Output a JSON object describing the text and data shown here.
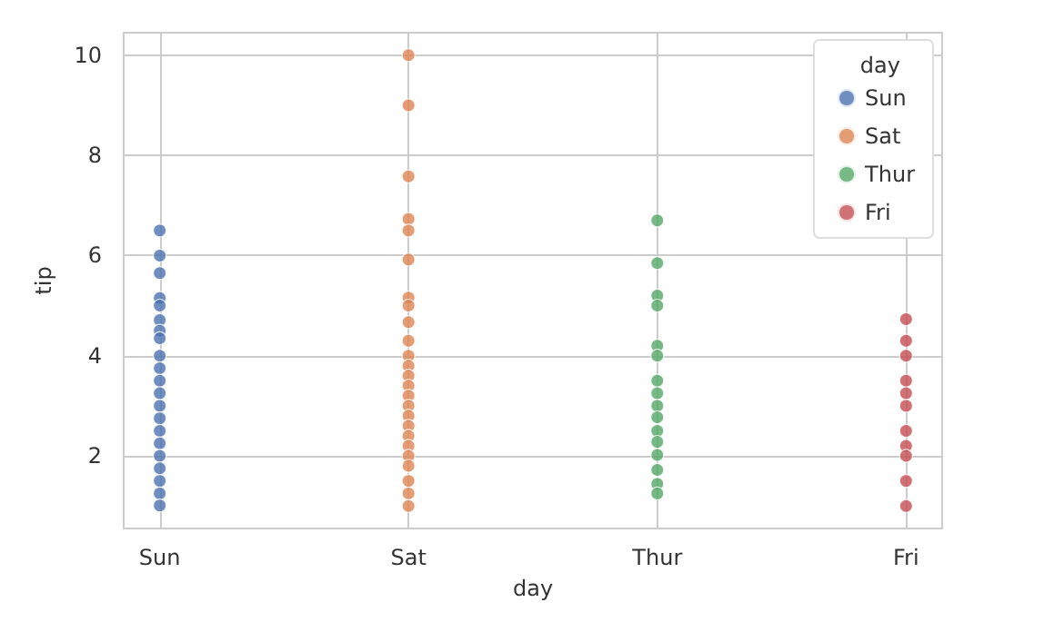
{
  "chart_data": {
    "type": "scatter",
    "xlabel": "day",
    "ylabel": "tip",
    "legend_title": "day",
    "categories": [
      "Sun",
      "Sat",
      "Thur",
      "Fri"
    ],
    "ylim": [
      0.55,
      10.45
    ],
    "yticks": [
      2,
      4,
      6,
      8,
      10
    ],
    "grid": true,
    "legend": "top right",
    "marker": "circle",
    "series": [
      {
        "name": "Sun",
        "color": "#4c72b0",
        "x": [
          "Sun",
          "Sun",
          "Sun",
          "Sun",
          "Sun",
          "Sun",
          "Sun",
          "Sun",
          "Sun",
          "Sun",
          "Sun",
          "Sun",
          "Sun",
          "Sun",
          "Sun",
          "Sun",
          "Sun",
          "Sun",
          "Sun",
          "Sun",
          "Sun"
        ],
        "values": [
          6.5,
          6.0,
          5.65,
          5.15,
          5.0,
          4.71,
          4.5,
          4.35,
          4.0,
          3.75,
          3.5,
          3.25,
          3.0,
          2.75,
          2.5,
          2.25,
          2.0,
          1.75,
          1.5,
          1.25,
          1.01
        ]
      },
      {
        "name": "Sat",
        "color": "#dd8452",
        "x": [
          "Sat",
          "Sat",
          "Sat",
          "Sat",
          "Sat",
          "Sat",
          "Sat",
          "Sat",
          "Sat",
          "Sat",
          "Sat",
          "Sat",
          "Sat",
          "Sat",
          "Sat",
          "Sat",
          "Sat",
          "Sat",
          "Sat",
          "Sat",
          "Sat",
          "Sat",
          "Sat",
          "Sat",
          "Sat"
        ],
        "values": [
          10.0,
          9.0,
          7.58,
          6.73,
          6.5,
          5.92,
          5.16,
          5.0,
          4.67,
          4.3,
          4.0,
          3.8,
          3.6,
          3.4,
          3.2,
          3.0,
          2.8,
          2.6,
          2.4,
          2.2,
          2.0,
          1.8,
          1.5,
          1.25,
          1.0
        ]
      },
      {
        "name": "Thur",
        "color": "#55a868",
        "x": [
          "Thur",
          "Thur",
          "Thur",
          "Thur",
          "Thur",
          "Thur",
          "Thur",
          "Thur",
          "Thur",
          "Thur",
          "Thur",
          "Thur",
          "Thur",
          "Thur",
          "Thur",
          "Thur"
        ],
        "values": [
          6.7,
          5.85,
          5.2,
          5.0,
          4.2,
          4.0,
          3.5,
          3.25,
          3.0,
          2.77,
          2.5,
          2.28,
          2.02,
          1.72,
          1.44,
          1.25
        ]
      },
      {
        "name": "Fri",
        "color": "#c44e52",
        "x": [
          "Fri",
          "Fri",
          "Fri",
          "Fri",
          "Fri",
          "Fri",
          "Fri",
          "Fri",
          "Fri",
          "Fri",
          "Fri"
        ],
        "values": [
          4.73,
          4.3,
          4.0,
          3.5,
          3.25,
          3.0,
          2.5,
          2.2,
          2.0,
          1.5,
          1.0
        ]
      }
    ]
  }
}
